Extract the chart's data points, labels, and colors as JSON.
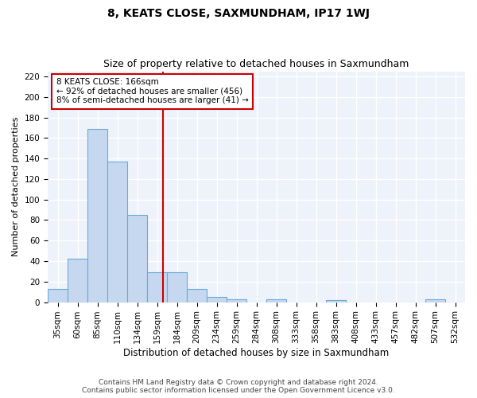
{
  "title": "8, KEATS CLOSE, SAXMUNDHAM, IP17 1WJ",
  "subtitle": "Size of property relative to detached houses in Saxmundham",
  "xlabel": "Distribution of detached houses by size in Saxmundham",
  "ylabel": "Number of detached properties",
  "footer_line1": "Contains HM Land Registry data © Crown copyright and database right 2024.",
  "footer_line2": "Contains public sector information licensed under the Open Government Licence v3.0.",
  "bin_labels": [
    "35sqm",
    "60sqm",
    "85sqm",
    "110sqm",
    "134sqm",
    "159sqm",
    "184sqm",
    "209sqm",
    "234sqm",
    "259sqm",
    "284sqm",
    "308sqm",
    "333sqm",
    "358sqm",
    "383sqm",
    "408sqm",
    "433sqm",
    "457sqm",
    "482sqm",
    "507sqm",
    "532sqm"
  ],
  "bar_heights": [
    13,
    42,
    169,
    137,
    85,
    29,
    29,
    13,
    5,
    3,
    0,
    3,
    0,
    0,
    2,
    0,
    0,
    0,
    0,
    3,
    0
  ],
  "bar_color": "#c5d8f0",
  "bar_edge_color": "#6aaad4",
  "vline_position": 5.5,
  "vline_color": "#cc0000",
  "annotation_text": "8 KEATS CLOSE: 166sqm\n← 92% of detached houses are smaller (456)\n8% of semi-detached houses are larger (41) →",
  "annotation_box_color": "#ffffff",
  "annotation_box_edge": "#cc0000",
  "ylim": [
    0,
    225
  ],
  "yticks": [
    0,
    20,
    40,
    60,
    80,
    100,
    120,
    140,
    160,
    180,
    200,
    220
  ],
  "background_color": "#eef2fb",
  "grid_color": "#ffffff",
  "title_fontsize": 10,
  "subtitle_fontsize": 9,
  "ylabel_fontsize": 8,
  "xlabel_fontsize": 8.5,
  "tick_fontsize": 7.5,
  "footer_fontsize": 6.5
}
